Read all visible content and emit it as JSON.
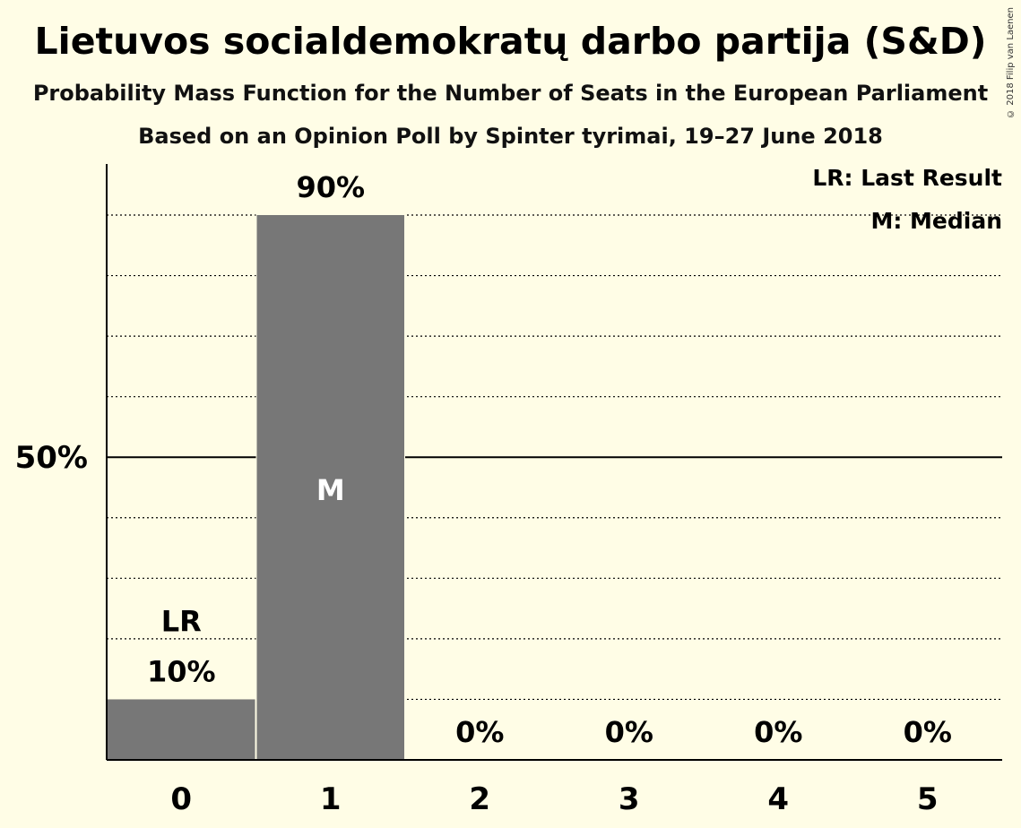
{
  "title": "Lietuvos socialdemokratų darbo partija (S&D)",
  "subtitle": "Probability Mass Function for the Number of Seats in the European Parliament",
  "subtitle2": "Based on an Opinion Poll by Spinter tyrimai, 19–27 June 2018",
  "copyright": "© 2018 Filip van Laenen",
  "legend": {
    "last_result": "LR: Last Result",
    "median": "M: Median"
  },
  "colors": {
    "background": "#fffde6",
    "bar": "#777777",
    "axis": "#000000"
  },
  "chart_data": {
    "type": "bar",
    "categories": [
      "0",
      "1",
      "2",
      "3",
      "4",
      "5"
    ],
    "values": [
      10,
      90,
      0,
      0,
      0,
      0
    ],
    "value_labels": [
      "10%",
      "90%",
      "0%",
      "0%",
      "0%",
      "0%"
    ],
    "ylim": [
      0,
      100
    ],
    "y_tick_labels": [
      {
        "value": 50,
        "label": "50%"
      }
    ],
    "gridlines": [
      10,
      20,
      30,
      40,
      60,
      70,
      80,
      90
    ],
    "major_gridline": 50,
    "last_result_index": 0,
    "last_result_label": "LR",
    "median_index": 1,
    "median_label": "M",
    "xlabel": "",
    "ylabel": "",
    "grid": true
  }
}
